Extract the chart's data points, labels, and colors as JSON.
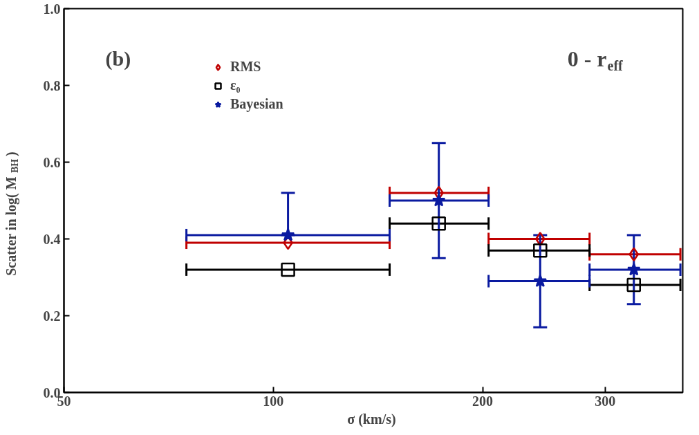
{
  "chart_data": {
    "type": "scatter",
    "xlabel": "σ  (km/s)",
    "ylabel": "Scatter in  log( M$_{BH}$ )",
    "annotations": [
      {
        "text": "(b)"
      },
      {
        "text": "0 - r$_{eff}$"
      }
    ],
    "log": "x",
    "xlim": [
      50,
      388
    ],
    "xticks": [
      50,
      100,
      200,
      300
    ],
    "ylim": [
      0,
      1
    ],
    "yticks": [
      {
        "value": 0,
        "label": "0.0"
      },
      {
        "value": 0.2,
        "label": "0.2"
      },
      {
        "value": 0.4,
        "label": "0.4"
      },
      {
        "value": 0.6,
        "label": "0.6"
      },
      {
        "value": 0.8,
        "label": "0.8"
      },
      {
        "value": 1,
        "label": "1.0"
      }
    ],
    "grid": false,
    "legend": "top left",
    "series": [
      {
        "name": "RMS",
        "color": "#c00000",
        "marker": "diamond",
        "x": [
          105,
          173,
          242,
          330
        ],
        "values": [
          0.39,
          0.52,
          0.4,
          0.36
        ],
        "xerrors": [
          [
            75,
            147
          ],
          [
            147,
            204
          ],
          [
            204,
            285
          ],
          [
            285,
            385
          ]
        ]
      },
      {
        "name": "ε₀",
        "color": "#000000",
        "marker": "square",
        "x": [
          105,
          173,
          242,
          330
        ],
        "values": [
          0.32,
          0.44,
          0.37,
          0.28
        ],
        "xerrors": [
          [
            75,
            147
          ],
          [
            147,
            204
          ],
          [
            204,
            285
          ],
          [
            285,
            385
          ]
        ]
      },
      {
        "name": "Bayesian",
        "color": "#0a1aa0",
        "marker": "star",
        "x": [
          105,
          173,
          242,
          330
        ],
        "values": [
          0.41,
          0.5,
          0.29,
          0.32
        ],
        "xerrors": [
          [
            75,
            147
          ],
          [
            147,
            204
          ],
          [
            204,
            285
          ],
          [
            285,
            385
          ]
        ],
        "errors": [
          [
            0.41,
            0.52
          ],
          [
            0.35,
            0.65
          ],
          [
            0.17,
            0.41
          ],
          [
            0.23,
            0.41
          ]
        ]
      }
    ]
  }
}
